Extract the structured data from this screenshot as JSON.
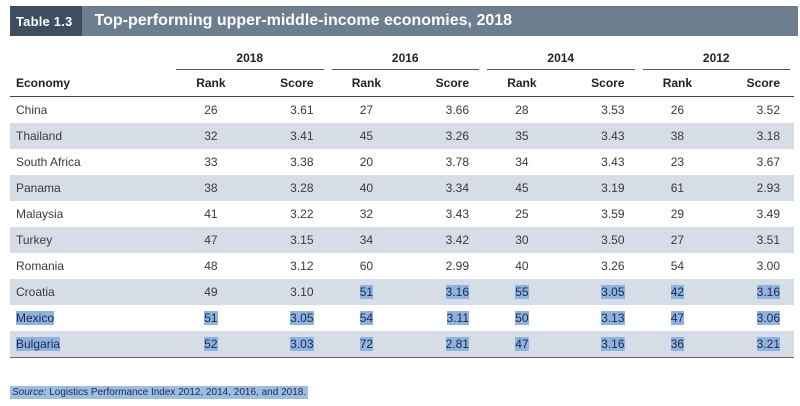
{
  "title": {
    "table_label": "Table 1.3",
    "text": "Top-performing upper-middle-income economies, 2018"
  },
  "columns": {
    "economy": "Economy",
    "rank": "Rank",
    "score": "Score",
    "years": [
      "2018",
      "2016",
      "2014",
      "2012"
    ]
  },
  "rows": [
    {
      "economy": "China",
      "values": [
        "26",
        "3.61",
        "27",
        "3.66",
        "28",
        "3.53",
        "26",
        "3.52"
      ]
    },
    {
      "economy": "Thailand",
      "values": [
        "32",
        "3.41",
        "45",
        "3.26",
        "35",
        "3.43",
        "38",
        "3.18"
      ]
    },
    {
      "economy": "South Africa",
      "values": [
        "33",
        "3.38",
        "20",
        "3.78",
        "34",
        "3.43",
        "23",
        "3.67"
      ]
    },
    {
      "economy": "Panama",
      "values": [
        "38",
        "3.28",
        "40",
        "3.34",
        "45",
        "3.19",
        "61",
        "2.93"
      ]
    },
    {
      "economy": "Malaysia",
      "values": [
        "41",
        "3.22",
        "32",
        "3.43",
        "25",
        "3.59",
        "29",
        "3.49"
      ]
    },
    {
      "economy": "Turkey",
      "values": [
        "47",
        "3.15",
        "34",
        "3.42",
        "30",
        "3.50",
        "27",
        "3.51"
      ]
    },
    {
      "economy": "Romania",
      "values": [
        "48",
        "3.12",
        "60",
        "2.99",
        "40",
        "3.26",
        "54",
        "3.00"
      ]
    },
    {
      "economy": "Croatia",
      "values": [
        "49",
        "3.10",
        "51",
        "3.16",
        "55",
        "3.05",
        "42",
        "3.16"
      ]
    },
    {
      "economy": "Mexico",
      "values": [
        "51",
        "3.05",
        "54",
        "3.11",
        "50",
        "3.13",
        "47",
        "3.06"
      ]
    },
    {
      "economy": "Bulgaria",
      "values": [
        "52",
        "3.03",
        "72",
        "2.81",
        "47",
        "3.16",
        "36",
        "3.21"
      ]
    }
  ],
  "source": {
    "label": "Source:",
    "text": " Logistics Performance Index 2012, 2014, 2016, and 2018."
  },
  "colors": {
    "title_bar": "#6d7f8f",
    "table_label_bg": "#3d4f5e",
    "row_shade": "#d6dde7",
    "selection_highlight": "#8fb3e0"
  }
}
